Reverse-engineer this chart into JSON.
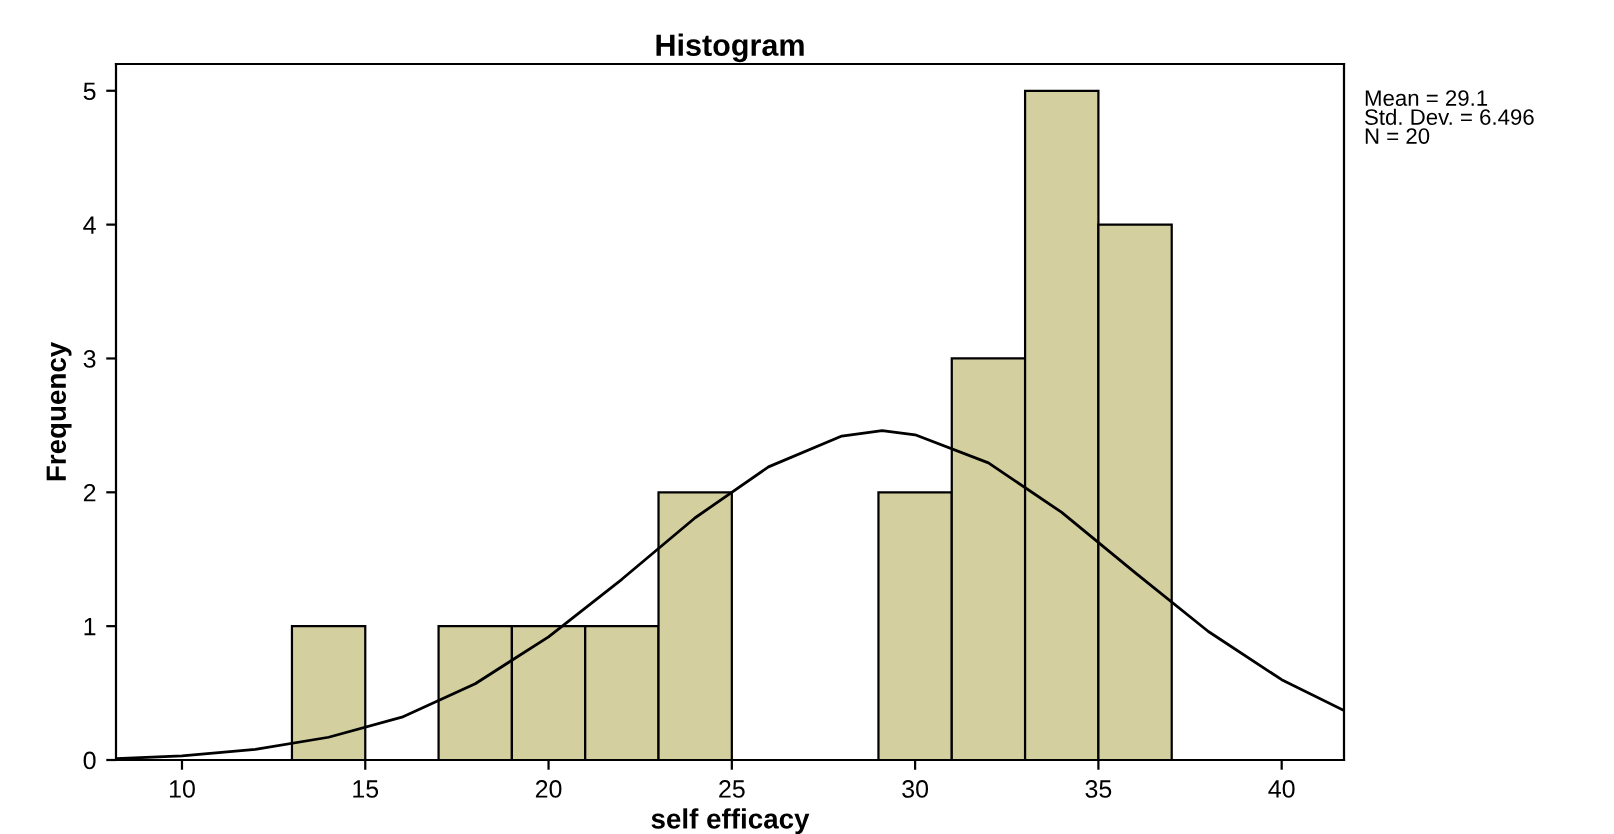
{
  "chart_data": {
    "type": "histogram",
    "title": "Histogram",
    "xlabel": "self efficacy",
    "ylabel": "Frequency",
    "series": [
      {
        "bins": [
          13,
          15,
          17,
          19,
          21,
          23,
          25,
          27,
          29,
          31,
          33,
          35,
          37
        ],
        "values": [
          1,
          0,
          1,
          1,
          1,
          2,
          0,
          0,
          2,
          3,
          5,
          4
        ],
        "color": "#d4cf9f"
      },
      {
        "type": "line",
        "x": [
          8.2,
          10,
          12,
          14,
          16,
          18,
          20,
          22,
          24,
          26,
          28,
          29.1,
          30,
          32,
          34,
          36,
          38,
          40,
          41.7
        ],
        "values": [
          0.01,
          0.03,
          0.08,
          0.17,
          0.32,
          0.57,
          0.92,
          1.35,
          1.81,
          2.19,
          2.42,
          2.46,
          2.43,
          2.22,
          1.85,
          1.4,
          0.96,
          0.6,
          0.37
        ],
        "color": "#000000"
      }
    ],
    "xlim": [
      8.2,
      41.7
    ],
    "xticks": [
      10,
      15,
      20,
      25,
      30,
      35,
      40
    ],
    "ylim": [
      0,
      5.2
    ],
    "yticks": [
      0,
      1,
      2,
      3,
      4,
      5
    ],
    "grid": false,
    "legend": false,
    "annotations": [
      "Mean = 29.1",
      "Std. Dev. = 6.496",
      "N = 20"
    ]
  }
}
